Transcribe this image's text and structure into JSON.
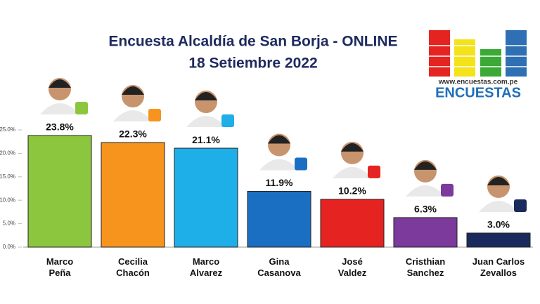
{
  "chart_data": {
    "type": "bar",
    "title": "Encuesta Alcaldía de San Borja - ONLINE",
    "subtitle": "18 Setiembre 2022",
    "brand": {
      "url": "www.encuestas.com.pe",
      "name": "ENCUESTAS"
    },
    "categories": [
      "Marco\nPeña",
      "Cecilia\nChacón",
      "Marco\nAlvarez",
      "Gina\nCasanova",
      "José\nValdez",
      "Cristhian\nSanchez",
      "Juan Carlos\nZevallos"
    ],
    "values": [
      23.8,
      22.3,
      21.1,
      11.9,
      10.2,
      6.3,
      3.0
    ],
    "value_labels": [
      "23.8%",
      "22.3%",
      "21.1%",
      "11.9%",
      "10.2%",
      "6.3%",
      "3.0%"
    ],
    "colors": [
      "#8cc63f",
      "#f7941d",
      "#1eaee8",
      "#1b6fc2",
      "#e52421",
      "#7b3a9c",
      "#1b2a5c"
    ],
    "ylim": [
      0,
      25
    ],
    "yticks": [
      {
        "value": 0,
        "label": "0.0%"
      },
      {
        "value": 5,
        "label": "5.0%"
      },
      {
        "value": 10,
        "label": "10.0%"
      },
      {
        "value": 15,
        "label": "15.0%"
      },
      {
        "value": 20,
        "label": "20.0%"
      },
      {
        "value": 25,
        "label": "25.0%"
      }
    ],
    "grid": false
  }
}
